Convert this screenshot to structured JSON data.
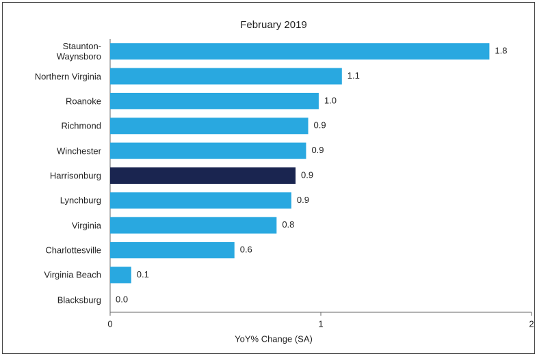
{
  "chart_data": {
    "type": "barh",
    "title": "February 2019",
    "xlabel": "YoY% Change (SA)",
    "categories": [
      "Staunton-\nWaynsboro",
      "Northern Virginia",
      "Roanoke",
      "Richmond",
      "Winchester",
      "Harrisonburg",
      "Lynchburg",
      "Virginia",
      "Charlottesville",
      "Virginia Beach",
      "Blacksburg"
    ],
    "values": [
      1.8,
      1.1,
      0.99,
      0.94,
      0.93,
      0.88,
      0.86,
      0.79,
      0.59,
      0.1,
      0
    ],
    "value_labels": [
      "1.8",
      "1.1",
      "1.0",
      "0.9",
      "0.9",
      "0.9",
      "0.9",
      "0.8",
      "0.6",
      "0.1",
      "0.0"
    ],
    "colors": [
      "#29a8e0",
      "#29a8e0",
      "#29a8e0",
      "#29a8e0",
      "#29a8e0",
      "#1a2550",
      "#29a8e0",
      "#29a8e0",
      "#29a8e0",
      "#29a8e0",
      "#29a8e0"
    ],
    "xlim": [
      0,
      2
    ],
    "xticks": [
      0,
      1,
      2
    ]
  }
}
